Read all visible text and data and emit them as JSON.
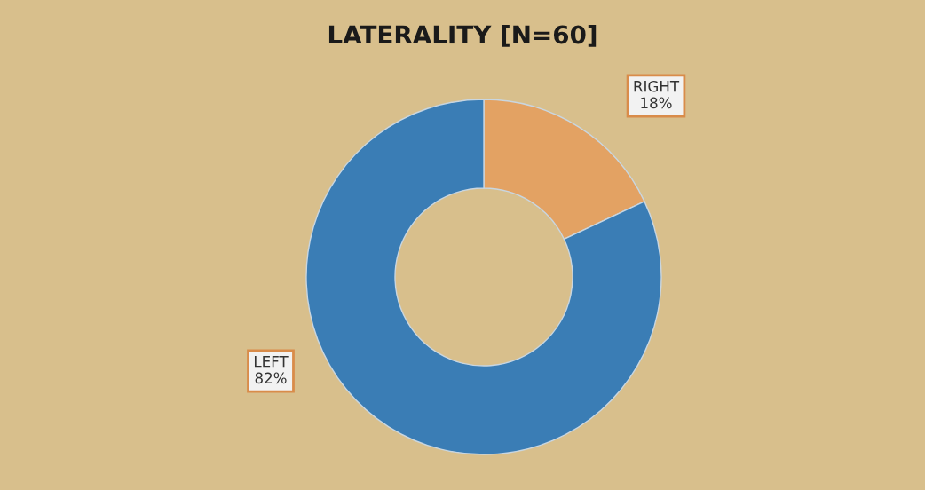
{
  "chart_data": {
    "type": "donut",
    "title": "LATERALITY [N=60]",
    "categories": [
      "RIGHT",
      "LEFT"
    ],
    "values": [
      18,
      82
    ],
    "value_labels": [
      "18%",
      "82%"
    ],
    "colors": [
      "#e3a263",
      "#3a7db5"
    ],
    "legend": false
  }
}
